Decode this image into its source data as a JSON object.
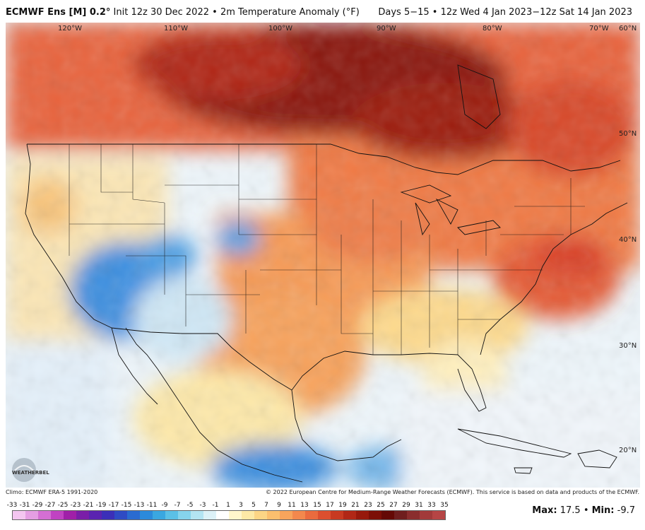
{
  "header": {
    "model": "ECMWF Ens [M] 0.2°",
    "init": "Init 12z 30 Dec 2022",
    "sep": "•",
    "variable": "2m Temperature Anomaly (°F)",
    "range": "Days 5−15 • 12z Wed 4 Jan 2023−12z Sat 14 Jan 2023"
  },
  "map": {
    "lon_labels": [
      "120°W",
      "110°W",
      "100°W",
      "90°W",
      "80°W",
      "70°W",
      "60°N"
    ],
    "lat_labels": [
      "50°N",
      "40°N",
      "30°N",
      "20°N"
    ]
  },
  "footer": {
    "climo": "Climo: ECMWF ERA-5 1991-2020",
    "copyright": "© 2022 European Centre for Medium-Range Weather Forecasts (ECMWF). This service is based on data and products of the ECMWF."
  },
  "legend": {
    "ticks": [
      "-33",
      "-31",
      "-29",
      "-27",
      "-25",
      "-23",
      "-21",
      "-19",
      "-17",
      "-15",
      "-13",
      "-11",
      "-9",
      "-7",
      "-5",
      "-3",
      "-1",
      "1",
      "3",
      "5",
      "7",
      "9",
      "11",
      "13",
      "15",
      "17",
      "19",
      "21",
      "23",
      "25",
      "27",
      "29",
      "31",
      "33",
      "35"
    ],
    "colors": [
      "#f4c6f0",
      "#e59ee3",
      "#d46fd3",
      "#c043c2",
      "#a020a8",
      "#7a1ea8",
      "#5a23b0",
      "#3b2fb8",
      "#2f4bc4",
      "#2a6bd0",
      "#2b8adb",
      "#3aa7e0",
      "#5bc0e6",
      "#86d4ec",
      "#b3e4f2",
      "#dcf1f7",
      "#ffffff",
      "#fff6cc",
      "#fde9a6",
      "#fcd585",
      "#fbbf6e",
      "#f8a45c",
      "#f3884d",
      "#ea6b3e",
      "#dc4f2f",
      "#c83a21",
      "#b12716",
      "#97190c",
      "#7c0f06",
      "#640905",
      "#6f1e1e",
      "#8a2d2d",
      "#a23a3a",
      "#b64545"
    ]
  },
  "stats": {
    "max_label": "Max:",
    "max_value": "17.5",
    "sep": "•",
    "min_label": "Min:",
    "min_value": "-9.7"
  },
  "logo": {
    "text": "WEATHERBELL"
  }
}
